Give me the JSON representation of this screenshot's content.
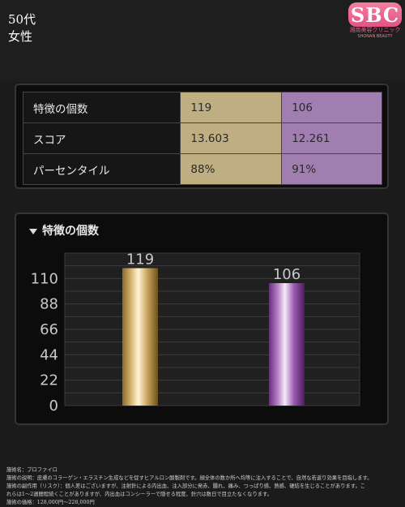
{
  "header": {
    "age": "50代",
    "gender": "女性",
    "logo": {
      "letters": "SBC",
      "sub": "湘南美容クリニック",
      "sub2": "SHONAN BEAUTY"
    }
  },
  "stats": {
    "rows": [
      {
        "label": "特徴の個数",
        "value1": "119",
        "value2": "106"
      },
      {
        "label": "スコア",
        "value1": "13.603",
        "value2": "12.261"
      },
      {
        "label": "パーセンタイル",
        "value1": "88%",
        "value2": "91%"
      }
    ]
  },
  "chart": {
    "title": "特徴の個数"
  },
  "chart_data": {
    "type": "bar",
    "title": "特徴の個数",
    "categories": [
      "",
      ""
    ],
    "values": [
      119,
      106
    ],
    "data_labels": [
      "119",
      "106"
    ],
    "yticks": [
      0,
      22,
      44,
      66,
      88,
      110
    ],
    "ylim": [
      0,
      132
    ],
    "grid": true,
    "colors": [
      "#c9a45a",
      "#8a4a9a"
    ]
  },
  "footnote": {
    "lines": [
      "施術名：プロファイロ",
      "施術の説明：皮膚のコラーゲン・エラスチン生成などを促すヒアルロン酸製剤です。顔全体の数か所へ均等に注入することで、自然な若返り効果を目指します。",
      "施術の副作用（リスク）：個人差はございますが、注射針による内出血、注入部分に発赤、腫れ、痛み、つっぱり感、熱感、硬結を生じることがあります。こ",
      "れらは1～2週間程続くことがありますが、内出血はコンシーラーで隠せる程度、針穴は数日で目立たなくなります。",
      "施術の価格：128,000円～228,000円"
    ]
  }
}
